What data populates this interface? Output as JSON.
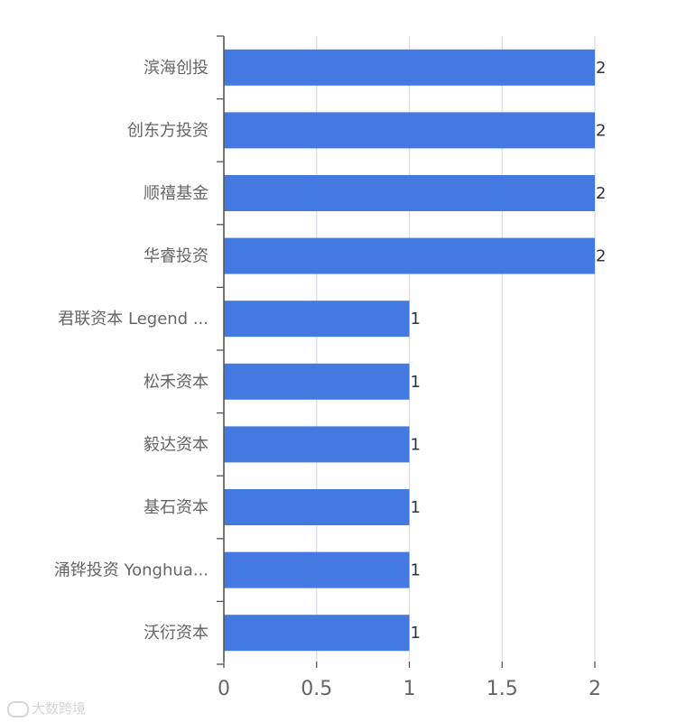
{
  "chart_data": {
    "type": "bar",
    "orientation": "horizontal",
    "categories": [
      "滨海创投",
      "创东方投资",
      "顺禧基金",
      "华睿投资",
      "君联资本 Legend ...",
      "松禾资本",
      "毅达资本",
      "基石资本",
      "涌铧投资 Yonghua...",
      "沃衍资本"
    ],
    "values": [
      2,
      2,
      2,
      2,
      1,
      1,
      1,
      1,
      1,
      1
    ],
    "xlim": [
      0,
      2
    ],
    "xticks": [
      "0",
      "0.5",
      "1",
      "1.5",
      "2"
    ],
    "grid": true,
    "bar_color": "#4479e1"
  },
  "watermark": {
    "text": "大数跨境"
  }
}
